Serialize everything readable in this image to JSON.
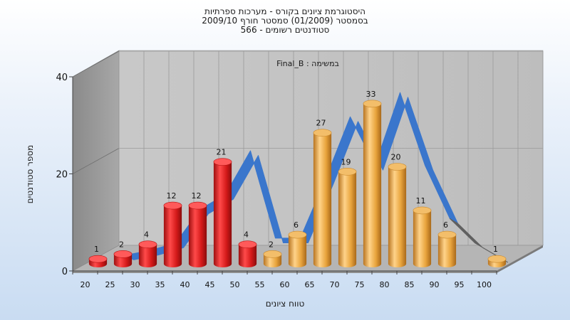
{
  "chart_data": {
    "type": "bar",
    "title_lines": [
      "היסטוגרמת ציונים בקורס - מערכות ספרתיות",
      "בסמסטר  (01/2009)  סמסטר חורף 2009/10",
      "סטודנטים רשומים - 566"
    ],
    "annotation": "במשימה : Final_B",
    "xlabel": "טווח ציונים",
    "ylabel": "מספר סטודנטים",
    "ylim": [
      0,
      40
    ],
    "yticks": [
      0,
      20,
      40
    ],
    "categories": [
      "20",
      "25",
      "30",
      "35",
      "40",
      "45",
      "50",
      "55",
      "60",
      "65",
      "70",
      "75",
      "80",
      "85",
      "90",
      "95",
      "100"
    ],
    "values": [
      1,
      2,
      4,
      12,
      12,
      21,
      4,
      2,
      6,
      27,
      19,
      33,
      20,
      11,
      6,
      0,
      1
    ],
    "fail_threshold": 55,
    "colors": {
      "fail": "#d81e1e",
      "pass": "#e8a43c",
      "curve": "#3a76cc",
      "curve_tail": "#606060"
    },
    "curve": {
      "name": "distribution-curve",
      "x": [
        25,
        30,
        35,
        40,
        45,
        50,
        55,
        60,
        65,
        70,
        75,
        80,
        85,
        90,
        95,
        100
      ],
      "y": [
        1.5,
        2.5,
        4,
        11,
        14,
        23,
        5,
        5,
        17,
        30,
        20,
        35,
        20,
        9,
        4,
        1
      ],
      "tail_from": 90
    },
    "grid": true
  }
}
